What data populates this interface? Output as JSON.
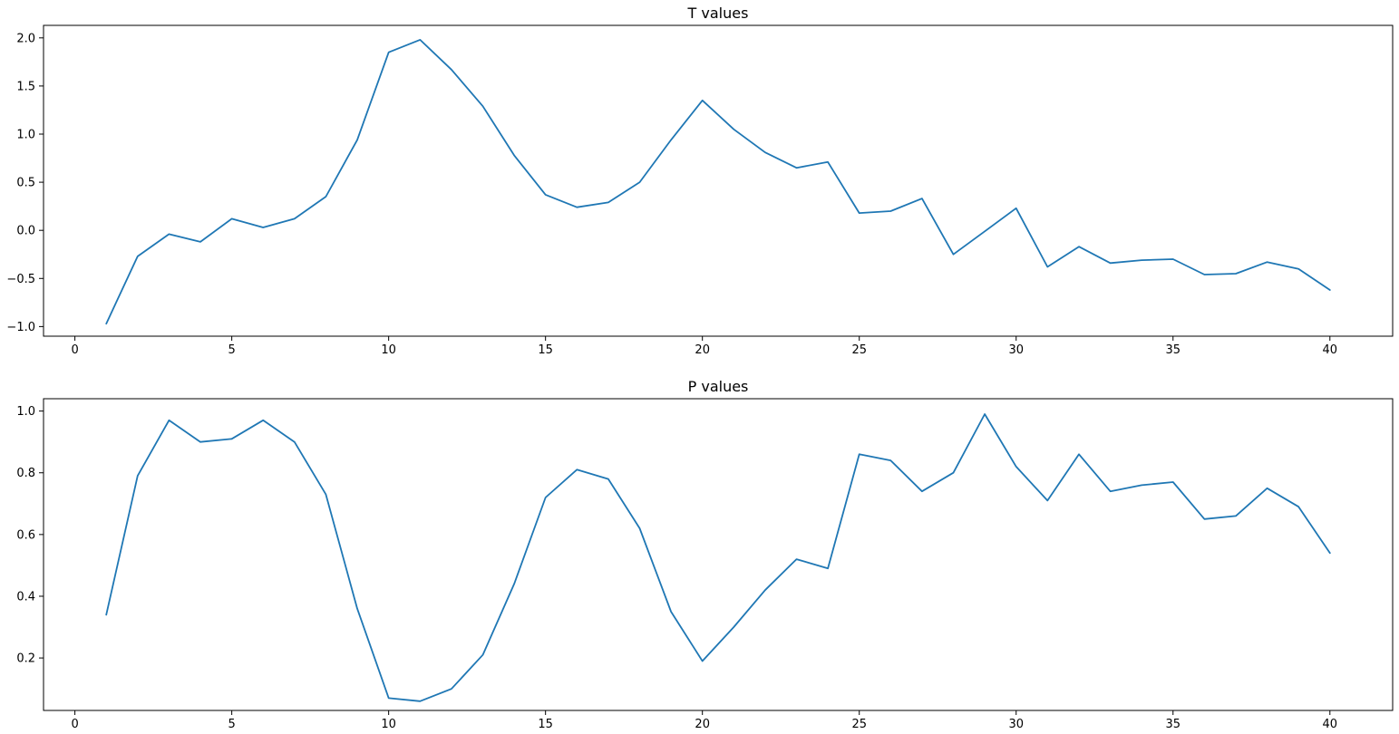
{
  "colors": {
    "series": "#1f77b4",
    "axes": "#000000",
    "background": "#ffffff"
  },
  "chart_data": [
    {
      "type": "line",
      "title": "T values",
      "xlabel": "",
      "ylabel": "",
      "xlim": [
        -1,
        42
      ],
      "ylim": [
        -1.1,
        2.13
      ],
      "xticks": [
        0,
        5,
        10,
        15,
        20,
        25,
        30,
        35,
        40
      ],
      "yticks": [
        -1.0,
        -0.5,
        0.0,
        0.5,
        1.0,
        1.5,
        2.0
      ],
      "ytick_labels": [
        "−1.0",
        "−0.5",
        "0.0",
        "0.5",
        "1.0",
        "1.5",
        "2.0"
      ],
      "grid": false,
      "legend": null,
      "x": [
        1,
        2,
        3,
        4,
        5,
        6,
        7,
        8,
        9,
        10,
        11,
        12,
        13,
        14,
        15,
        16,
        17,
        18,
        19,
        20,
        21,
        22,
        23,
        24,
        25,
        26,
        27,
        28,
        29,
        30,
        31,
        32,
        33,
        34,
        35,
        36,
        37,
        38,
        39,
        40
      ],
      "series": [
        {
          "color": "#1f77b4",
          "values": [
            -0.97,
            -0.27,
            -0.04,
            -0.12,
            0.12,
            0.03,
            0.12,
            0.35,
            0.94,
            1.85,
            1.98,
            1.67,
            1.29,
            0.78,
            0.37,
            0.24,
            0.29,
            0.5,
            0.94,
            1.35,
            1.05,
            0.81,
            0.65,
            0.71,
            0.18,
            0.2,
            0.33,
            -0.25,
            -0.01,
            0.23,
            -0.38,
            -0.17,
            -0.34,
            -0.31,
            -0.3,
            -0.46,
            -0.45,
            -0.33,
            -0.4,
            -0.62
          ]
        }
      ]
    },
    {
      "type": "line",
      "title": "P values",
      "xlabel": "",
      "ylabel": "",
      "xlim": [
        -1,
        42
      ],
      "ylim": [
        0.03,
        1.04
      ],
      "xticks": [
        0,
        5,
        10,
        15,
        20,
        25,
        30,
        35,
        40
      ],
      "yticks": [
        0.2,
        0.4,
        0.6,
        0.8,
        1.0
      ],
      "ytick_labels": [
        "0.2",
        "0.4",
        "0.6",
        "0.8",
        "1.0"
      ],
      "grid": false,
      "legend": null,
      "x": [
        1,
        2,
        3,
        4,
        5,
        6,
        7,
        8,
        9,
        10,
        11,
        12,
        13,
        14,
        15,
        16,
        17,
        18,
        19,
        20,
        21,
        22,
        23,
        24,
        25,
        26,
        27,
        28,
        29,
        30,
        31,
        32,
        33,
        34,
        35,
        36,
        37,
        38,
        39,
        40
      ],
      "series": [
        {
          "color": "#1f77b4",
          "values": [
            0.34,
            0.79,
            0.97,
            0.9,
            0.91,
            0.97,
            0.9,
            0.73,
            0.36,
            0.07,
            0.06,
            0.1,
            0.21,
            0.44,
            0.72,
            0.81,
            0.78,
            0.62,
            0.35,
            0.19,
            0.3,
            0.42,
            0.52,
            0.49,
            0.86,
            0.84,
            0.74,
            0.8,
            0.99,
            0.82,
            0.71,
            0.86,
            0.74,
            0.76,
            0.77,
            0.65,
            0.66,
            0.75,
            0.69,
            0.54
          ]
        }
      ]
    }
  ]
}
